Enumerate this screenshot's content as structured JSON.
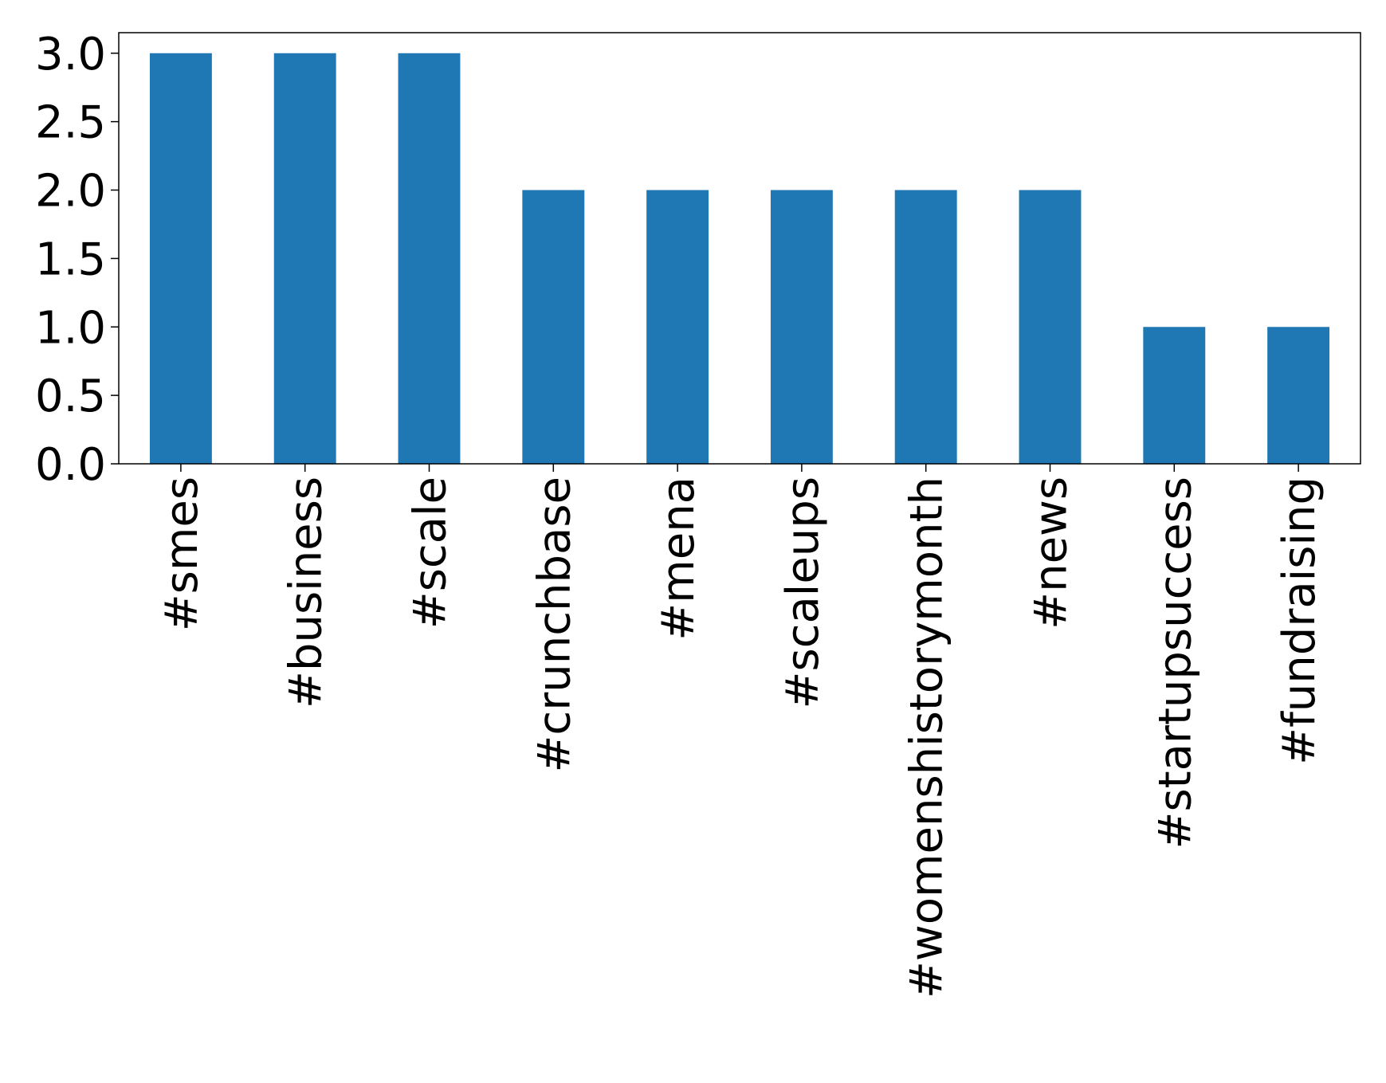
{
  "chart_data": {
    "type": "bar",
    "categories": [
      "#smes",
      "#business",
      "#scale",
      "#crunchbase",
      "#mena",
      "#scaleups",
      "#womenshistorymonth",
      "#news",
      "#startupsuccess",
      "#fundraising"
    ],
    "values": [
      3,
      3,
      3,
      2,
      2,
      2,
      2,
      2,
      1,
      1
    ],
    "color": "#1f77b4",
    "ylim": [
      0,
      3.15
    ],
    "yticks": [
      {
        "value": 0,
        "label": "0.0"
      },
      0.5,
      {
        "value": 1,
        "label": "1.0"
      },
      1.5,
      {
        "value": 2,
        "label": "2.0"
      },
      2.5,
      {
        "value": 3,
        "label": "3.0"
      }
    ],
    "grid": false
  }
}
